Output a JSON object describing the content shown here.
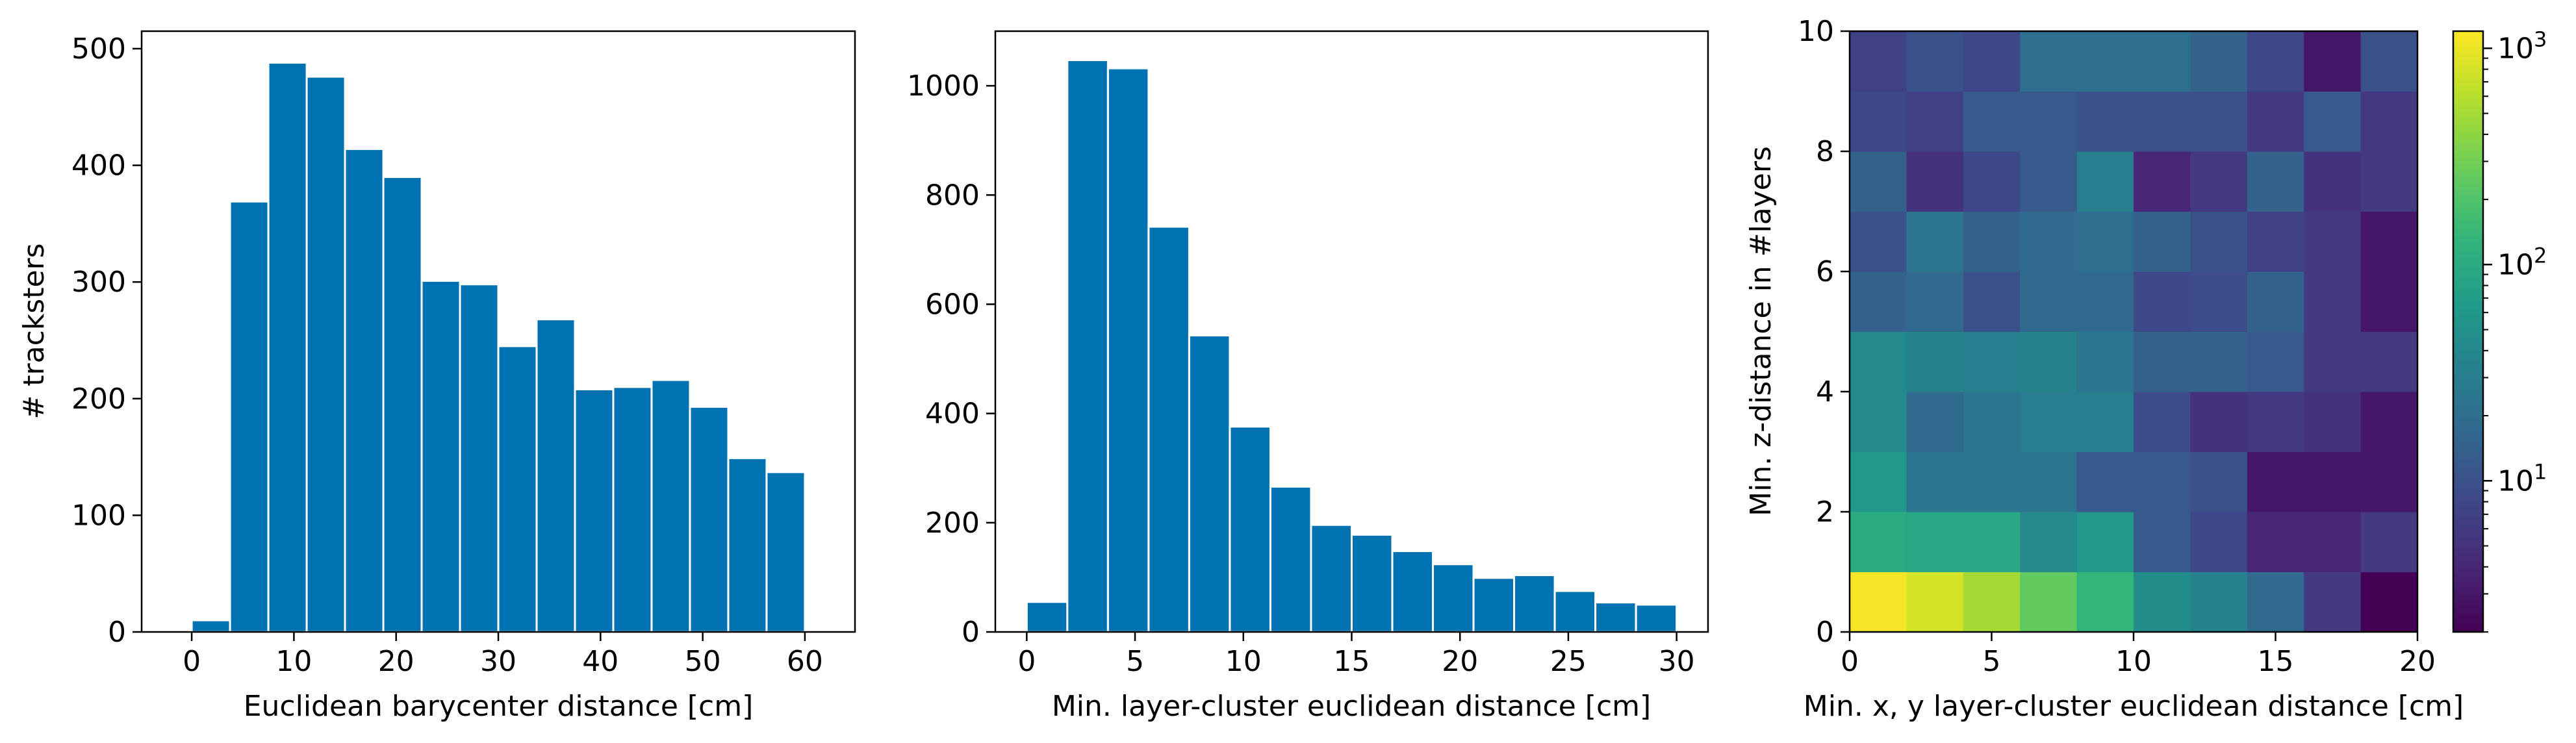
{
  "chart_data": [
    {
      "type": "bar",
      "xlabel": "Euclidean barycenter distance [cm]",
      "ylabel": "# tracksters",
      "xlim": [
        -4.9,
        64.9
      ],
      "ylim": [
        0,
        515
      ],
      "xticks": [
        0,
        10,
        20,
        30,
        40,
        50,
        60
      ],
      "yticks": [
        0,
        100,
        200,
        300,
        400,
        500
      ],
      "bin_edges": [
        0,
        3.75,
        7.5,
        11.25,
        15,
        18.75,
        22.5,
        26.25,
        30,
        33.75,
        37.5,
        41.25,
        45,
        48.75,
        52.5,
        56.25,
        60
      ],
      "values": [
        10,
        369,
        488,
        476,
        414,
        390,
        301,
        298,
        245,
        268,
        208,
        210,
        216,
        193,
        149,
        137
      ],
      "color": "#0072b2",
      "edgecolor": "#ffffff"
    },
    {
      "type": "bar",
      "xlabel": "Min. layer-cluster euclidean distance [cm]",
      "ylabel": "",
      "xlim": [
        -1.45,
        31.45
      ],
      "ylim": [
        0,
        1100
      ],
      "xticks": [
        0,
        5,
        10,
        15,
        20,
        25,
        30
      ],
      "yticks": [
        0,
        200,
        400,
        600,
        800,
        1000
      ],
      "bin_edges": [
        0,
        1.875,
        3.75,
        5.625,
        7.5,
        9.375,
        11.25,
        13.125,
        15,
        16.875,
        18.75,
        20.625,
        22.5,
        24.375,
        26.25,
        28.125,
        30
      ],
      "values": [
        55,
        1047,
        1032,
        742,
        543,
        376,
        266,
        196,
        178,
        148,
        124,
        99,
        104,
        75,
        54,
        50
      ],
      "color": "#0072b2",
      "edgecolor": "#ffffff"
    },
    {
      "type": "heatmap",
      "xlabel": "Min. x, y layer-cluster euclidean distance [cm]",
      "ylabel": "Min. z-distance in #layers",
      "xlim": [
        0,
        20
      ],
      "ylim": [
        0,
        10
      ],
      "xticks": [
        0,
        5,
        10,
        15,
        20
      ],
      "yticks": [
        0,
        2,
        4,
        6,
        8,
        10
      ],
      "x_edges": [
        0,
        2,
        4,
        6,
        8,
        10,
        12,
        14,
        16,
        18,
        20
      ],
      "y_edges": [
        0,
        1,
        2,
        3,
        4,
        5,
        6,
        7,
        8,
        9,
        10
      ],
      "colormap": "viridis",
      "log_scale": true,
      "cmin": 2,
      "cmax": 1200,
      "colorbar_ticks": [
        {
          "value": 10,
          "base": "10",
          "exp": "1"
        },
        {
          "value": 100,
          "base": "10",
          "exp": "2"
        },
        {
          "value": 1000,
          "base": "10",
          "exp": "3"
        }
      ],
      "rows_bottom_to_top": [
        [
          1100,
          800,
          500,
          250,
          130,
          45,
          35,
          18,
          6,
          2
        ],
        [
          100,
          90,
          90,
          40,
          60,
          12,
          8,
          4,
          4,
          6
        ],
        [
          60,
          25,
          25,
          25,
          12,
          12,
          10,
          3,
          3,
          3
        ],
        [
          40,
          18,
          25,
          30,
          30,
          9,
          5,
          6,
          5,
          3
        ],
        [
          40,
          35,
          30,
          35,
          25,
          15,
          15,
          12,
          6,
          6
        ],
        [
          15,
          18,
          10,
          18,
          18,
          8,
          9,
          15,
          6,
          3
        ],
        [
          10,
          25,
          15,
          18,
          20,
          15,
          10,
          7,
          6,
          3
        ],
        [
          15,
          5,
          8,
          12,
          30,
          4,
          6,
          15,
          5,
          6
        ],
        [
          8,
          7,
          12,
          12,
          10,
          10,
          10,
          6,
          12,
          6
        ],
        [
          7,
          10,
          8,
          20,
          20,
          20,
          15,
          8,
          3,
          10
        ]
      ]
    }
  ]
}
